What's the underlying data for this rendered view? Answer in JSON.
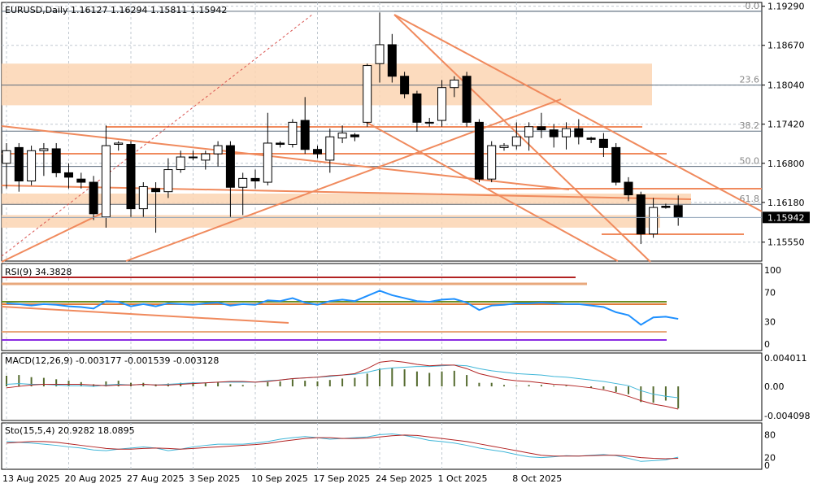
{
  "panels": {
    "price": {
      "header": "EURUSD,Daily  1.16127 1.16294 1.15811 1.15942"
    },
    "rsi": {
      "header": "RSI(9) 34.3828"
    },
    "macd": {
      "header": "MACD(12,26,9) -0.003177 -0.001539 -0.003128"
    },
    "sto": {
      "header": "Sto(15,5,4) 20.9282 18.0895"
    }
  },
  "colors": {
    "bull_body": "#ffffff",
    "bear_body": "#000000",
    "candle_outline": "#000000",
    "trendline": "#f08a5d",
    "zone_fill": "#fbd5b3",
    "fib_line": "#5d6d7e",
    "grid": "#c0c8d0",
    "rsi_line": "#1e90ff",
    "macd_hist": "#556b2f",
    "macd_main": "#3fb6d8",
    "macd_signal": "#b22222",
    "sto_main": "#3fb6d8",
    "sto_signal": "#b22222",
    "last_price_box": "#000000"
  },
  "chart_data": [
    {
      "type": "candlestick",
      "panel": "price",
      "symbol": "EURUSD",
      "timeframe": "Daily",
      "ylim": [
        1.1525,
        1.1935
      ],
      "y_ticks": [
        "1.19290",
        "1.18670",
        "1.18040",
        "1.17420",
        "1.16800",
        "1.16180",
        "1.15550"
      ],
      "last_price": "1.15942",
      "fibonacci": [
        {
          "label": "0.0",
          "price": 1.1921
        },
        {
          "label": "23.6",
          "price": 1.1804
        },
        {
          "label": "38.2",
          "price": 1.1731
        },
        {
          "label": "50.0",
          "price": 1.1675
        },
        {
          "label": "61.8",
          "price": 1.1615
        }
      ],
      "x_labels": [
        "13 Aug 2025",
        "20 Aug 2025",
        "27 Aug 2025",
        "3 Sep 2025",
        "10 Sep 2025",
        "17 Sep 2025",
        "24 Sep 2025",
        "1 Oct 2025",
        "8 Oct 2025"
      ],
      "candles": [
        {
          "o": 1.168,
          "h": 1.1712,
          "l": 1.164,
          "c": 1.17
        },
        {
          "o": 1.1705,
          "h": 1.1712,
          "l": 1.1635,
          "c": 1.1652
        },
        {
          "o": 1.1652,
          "h": 1.1708,
          "l": 1.1645,
          "c": 1.17
        },
        {
          "o": 1.17,
          "h": 1.1712,
          "l": 1.166,
          "c": 1.1703
        },
        {
          "o": 1.1703,
          "h": 1.1712,
          "l": 1.1658,
          "c": 1.1665
        },
        {
          "o": 1.1665,
          "h": 1.168,
          "l": 1.164,
          "c": 1.1658
        },
        {
          "o": 1.1655,
          "h": 1.1665,
          "l": 1.164,
          "c": 1.165
        },
        {
          "o": 1.165,
          "h": 1.166,
          "l": 1.159,
          "c": 1.16
        },
        {
          "o": 1.1595,
          "h": 1.174,
          "l": 1.1578,
          "c": 1.1708
        },
        {
          "o": 1.171,
          "h": 1.1715,
          "l": 1.17,
          "c": 1.1712
        },
        {
          "o": 1.171,
          "h": 1.1715,
          "l": 1.1595,
          "c": 1.1608
        },
        {
          "o": 1.1608,
          "h": 1.165,
          "l": 1.1595,
          "c": 1.1643
        },
        {
          "o": 1.164,
          "h": 1.165,
          "l": 1.157,
          "c": 1.1635
        },
        {
          "o": 1.1635,
          "h": 1.1688,
          "l": 1.1625,
          "c": 1.167
        },
        {
          "o": 1.167,
          "h": 1.17,
          "l": 1.1665,
          "c": 1.169
        },
        {
          "o": 1.169,
          "h": 1.17,
          "l": 1.1685,
          "c": 1.169
        },
        {
          "o": 1.1685,
          "h": 1.17,
          "l": 1.167,
          "c": 1.1695
        },
        {
          "o": 1.1695,
          "h": 1.1715,
          "l": 1.1675,
          "c": 1.1708
        },
        {
          "o": 1.1708,
          "h": 1.1715,
          "l": 1.1595,
          "c": 1.1642
        },
        {
          "o": 1.1642,
          "h": 1.1665,
          "l": 1.1598,
          "c": 1.1656
        },
        {
          "o": 1.1656,
          "h": 1.167,
          "l": 1.164,
          "c": 1.1652
        },
        {
          "o": 1.165,
          "h": 1.176,
          "l": 1.1645,
          "c": 1.1712
        },
        {
          "o": 1.1712,
          "h": 1.1715,
          "l": 1.1705,
          "c": 1.171
        },
        {
          "o": 1.171,
          "h": 1.175,
          "l": 1.1705,
          "c": 1.1745
        },
        {
          "o": 1.1748,
          "h": 1.1785,
          "l": 1.1695,
          "c": 1.1702
        },
        {
          "o": 1.1702,
          "h": 1.1708,
          "l": 1.1688,
          "c": 1.1695
        },
        {
          "o": 1.1685,
          "h": 1.1735,
          "l": 1.1665,
          "c": 1.1722
        },
        {
          "o": 1.172,
          "h": 1.174,
          "l": 1.1712,
          "c": 1.1728
        },
        {
          "o": 1.1725,
          "h": 1.1728,
          "l": 1.1715,
          "c": 1.1722
        },
        {
          "o": 1.1745,
          "h": 1.1838,
          "l": 1.1738,
          "c": 1.1835
        },
        {
          "o": 1.1838,
          "h": 1.1919,
          "l": 1.1808,
          "c": 1.1868
        },
        {
          "o": 1.1868,
          "h": 1.1885,
          "l": 1.1808,
          "c": 1.1818
        },
        {
          "o": 1.1818,
          "h": 1.1825,
          "l": 1.1783,
          "c": 1.179
        },
        {
          "o": 1.179,
          "h": 1.1795,
          "l": 1.173,
          "c": 1.1745
        },
        {
          "o": 1.1745,
          "h": 1.1752,
          "l": 1.1738,
          "c": 1.1745
        },
        {
          "o": 1.1748,
          "h": 1.1812,
          "l": 1.1738,
          "c": 1.18
        },
        {
          "o": 1.18,
          "h": 1.1818,
          "l": 1.1785,
          "c": 1.1812
        },
        {
          "o": 1.1818,
          "h": 1.1825,
          "l": 1.1738,
          "c": 1.1745
        },
        {
          "o": 1.1745,
          "h": 1.175,
          "l": 1.165,
          "c": 1.1655
        },
        {
          "o": 1.1655,
          "h": 1.1715,
          "l": 1.165,
          "c": 1.1708
        },
        {
          "o": 1.1705,
          "h": 1.1712,
          "l": 1.17,
          "c": 1.1708
        },
        {
          "o": 1.1708,
          "h": 1.1745,
          "l": 1.1702,
          "c": 1.1722
        },
        {
          "o": 1.1722,
          "h": 1.1745,
          "l": 1.17,
          "c": 1.1738
        },
        {
          "o": 1.1738,
          "h": 1.176,
          "l": 1.172,
          "c": 1.1733
        },
        {
          "o": 1.1733,
          "h": 1.1742,
          "l": 1.1705,
          "c": 1.1722
        },
        {
          "o": 1.1722,
          "h": 1.1745,
          "l": 1.1702,
          "c": 1.1735
        },
        {
          "o": 1.1735,
          "h": 1.175,
          "l": 1.171,
          "c": 1.1722
        },
        {
          "o": 1.172,
          "h": 1.1722,
          "l": 1.1712,
          "c": 1.1718
        },
        {
          "o": 1.1718,
          "h": 1.1728,
          "l": 1.169,
          "c": 1.1705
        },
        {
          "o": 1.1705,
          "h": 1.1712,
          "l": 1.1645,
          "c": 1.165
        },
        {
          "o": 1.165,
          "h": 1.1658,
          "l": 1.162,
          "c": 1.163
        },
        {
          "o": 1.163,
          "h": 1.1635,
          "l": 1.1552,
          "c": 1.1568
        },
        {
          "o": 1.1568,
          "h": 1.1625,
          "l": 1.1562,
          "c": 1.161
        },
        {
          "o": 1.1612,
          "h": 1.1616,
          "l": 1.1608,
          "c": 1.161
        },
        {
          "o": 1.1613,
          "h": 1.1629,
          "l": 1.1581,
          "c": 1.1594
        }
      ]
    },
    {
      "type": "line",
      "panel": "rsi",
      "name": "RSI(9)",
      "ylim": [
        0,
        100
      ],
      "y_ticks": [
        "100",
        "70",
        "30",
        "0"
      ],
      "values": [
        55,
        54,
        52,
        54,
        53,
        51,
        50,
        48,
        58,
        57,
        51,
        54,
        51,
        55,
        54,
        53,
        55,
        56,
        52,
        54,
        53,
        59,
        58,
        62,
        56,
        53,
        58,
        60,
        58,
        65,
        72,
        66,
        62,
        58,
        57,
        60,
        61,
        56,
        46,
        52,
        53,
        55,
        55,
        56,
        55,
        54,
        54,
        52,
        50,
        43,
        39,
        26,
        36,
        37,
        34
      ]
    },
    {
      "type": "bar+line",
      "panel": "macd",
      "name": "MACD(12,26,9)",
      "ylim": [
        -0.0048,
        0.0047
      ],
      "y_ticks": [
        "0.004011",
        "0.00",
        "-0.004098"
      ],
      "histogram": [
        0.0015,
        0.0016,
        0.0013,
        0.0012,
        0.001,
        0.0008,
        0.0006,
        0.0003,
        0.0007,
        0.0008,
        0.0005,
        0.0005,
        0.0003,
        0.0004,
        0.0005,
        0.0006,
        0.0005,
        0.0006,
        0.0003,
        0.0002,
        0.0001,
        0.0006,
        0.0007,
        0.001,
        0.0008,
        0.0007,
        0.0009,
        0.0011,
        0.0012,
        0.0018,
        0.0025,
        0.0026,
        0.0024,
        0.0021,
        0.0019,
        0.0021,
        0.0022,
        0.0016,
        0.0005,
        0.0005,
        0.0002,
        0.0001,
        0.0002,
        0.0002,
        0.0001,
        0.0001,
        0.0,
        -0.0002,
        -0.0004,
        -0.0008,
        -0.0011,
        -0.0022,
        -0.0023,
        -0.002,
        -0.0031
      ],
      "main": [
        0.0003,
        0.0004,
        0.0003,
        0.0003,
        0.0002,
        0.0001,
        0.0001,
        0.0,
        0.0002,
        0.0003,
        0.0002,
        0.0003,
        0.0002,
        0.0003,
        0.0004,
        0.0005,
        0.0005,
        0.0006,
        0.0006,
        0.0006,
        0.0006,
        0.0008,
        0.0009,
        0.0011,
        0.0012,
        0.0013,
        0.0014,
        0.0016,
        0.0017,
        0.002,
        0.0024,
        0.0026,
        0.0027,
        0.0028,
        0.0028,
        0.0029,
        0.003,
        0.0029,
        0.0025,
        0.0022,
        0.002,
        0.0018,
        0.0017,
        0.0016,
        0.0014,
        0.0013,
        0.0011,
        0.0009,
        0.0007,
        0.0004,
        0.0001,
        -0.0006,
        -0.0011,
        -0.0014,
        -0.0016
      ],
      "signal": [
        -0.0002,
        0.0,
        0.0002,
        0.0003,
        0.0003,
        0.0003,
        0.0003,
        0.0002,
        0.0001,
        0.0002,
        0.0002,
        0.0003,
        0.0002,
        0.0002,
        0.0003,
        0.0004,
        0.0005,
        0.0006,
        0.0007,
        0.0007,
        0.0006,
        0.0007,
        0.0009,
        0.0011,
        0.0012,
        0.0013,
        0.0015,
        0.0016,
        0.0018,
        0.0025,
        0.0034,
        0.0036,
        0.0034,
        0.0031,
        0.0029,
        0.003,
        0.003,
        0.0025,
        0.0018,
        0.0014,
        0.001,
        0.0008,
        0.0007,
        0.0005,
        0.0003,
        0.0002,
        0.0,
        -0.0002,
        -0.0005,
        -0.0009,
        -0.0014,
        -0.002,
        -0.0025,
        -0.0028,
        -0.0032
      ]
    },
    {
      "type": "line",
      "panel": "sto",
      "name": "Sto(15,5,4)",
      "ylim": [
        0,
        100
      ],
      "y_ticks": [
        "80",
        "20",
        "0"
      ],
      "main": [
        62,
        60,
        58,
        55,
        52,
        48,
        45,
        40,
        38,
        42,
        45,
        48,
        45,
        38,
        42,
        48,
        52,
        55,
        55,
        55,
        58,
        62,
        68,
        72,
        75,
        72,
        68,
        70,
        72,
        74,
        80,
        82,
        78,
        72,
        65,
        62,
        58,
        52,
        45,
        40,
        35,
        28,
        22,
        20,
        22,
        25,
        24,
        26,
        28,
        25,
        18,
        10,
        12,
        14,
        21
      ],
      "signal": [
        58,
        60,
        62,
        62,
        60,
        56,
        52,
        48,
        44,
        42,
        42,
        44,
        45,
        44,
        42,
        44,
        46,
        48,
        50,
        52,
        54,
        57,
        62,
        66,
        70,
        72,
        72,
        70,
        70,
        71,
        74,
        77,
        79,
        78,
        74,
        70,
        66,
        62,
        56,
        50,
        44,
        38,
        32,
        26,
        24,
        24,
        24,
        25,
        26,
        26,
        24,
        20,
        18,
        17,
        18
      ]
    }
  ]
}
